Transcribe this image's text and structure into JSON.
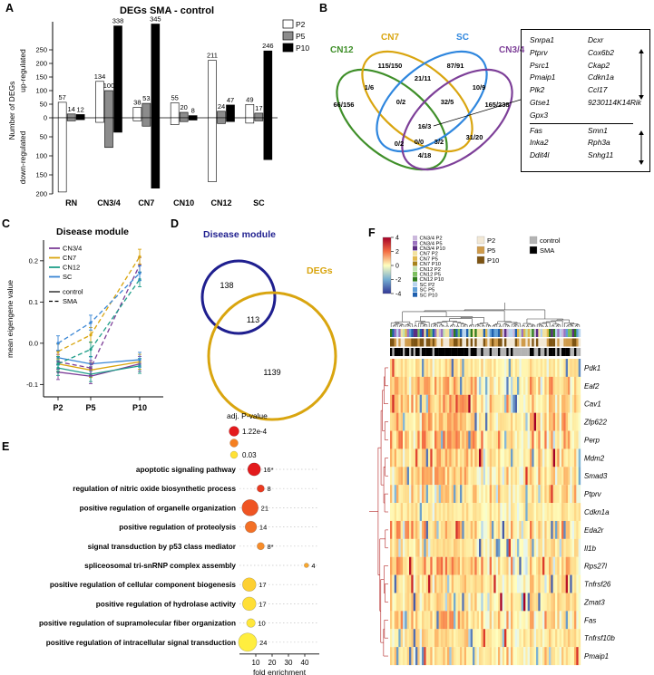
{
  "chart_data": [
    {
      "panel": "A",
      "type": "bar",
      "title": "DEGs SMA - control",
      "ylabel": "Number of DEGs",
      "ylabel_up": "up-regulated",
      "ylabel_down": "down-regulated",
      "legend": [
        {
          "label": "P2",
          "color": "#ffffff"
        },
        {
          "label": "P5",
          "color": "#8c8c8c"
        },
        {
          "label": "P10",
          "color": "#000000"
        }
      ],
      "categories": [
        "RN",
        "CN3/4",
        "CN7",
        "CN10",
        "CN12",
        "SC"
      ],
      "series_names": [
        "P2",
        "P5",
        "P10"
      ],
      "up_values": [
        [
          57,
          14,
          12
        ],
        [
          134,
          100,
          338
        ],
        [
          38,
          53,
          345
        ],
        [
          55,
          20,
          8
        ],
        [
          211,
          24,
          47
        ],
        [
          49,
          17,
          246
        ]
      ],
      "down_values": [
        [
          195,
          8,
          5
        ],
        [
          12,
          78,
          38
        ],
        [
          8,
          22,
          185
        ],
        [
          18,
          10,
          6
        ],
        [
          168,
          15,
          10
        ],
        [
          14,
          8,
          110
        ]
      ],
      "up_ticks": [
        0,
        50,
        100,
        150,
        200,
        250
      ],
      "down_ticks": [
        50,
        100,
        150,
        200
      ]
    },
    {
      "panel": "B",
      "type": "venn4",
      "sets": [
        {
          "name": "CN12",
          "color": "#3f8f29"
        },
        {
          "name": "CN7",
          "color": "#d9a50f"
        },
        {
          "name": "SC",
          "color": "#2e86de"
        },
        {
          "name": "CN3/4",
          "color": "#7d3f98"
        }
      ],
      "counts_reading_order": [
        "115/150",
        "87/91",
        "1/6",
        "21/11",
        "10/9",
        "66/156",
        "0/2",
        "32/5",
        "165/238",
        "16/3",
        "0/2",
        "0/0",
        "3/2",
        "31/20",
        "4/18"
      ],
      "gene_box": {
        "up_rows": [
          [
            "Snrpa1",
            "Dcxr"
          ],
          [
            "Ptprv",
            "Cox6b2"
          ],
          [
            "Psrc1",
            "Ckap2"
          ],
          [
            "Pmaip1",
            "Cdkn1a"
          ],
          [
            "Plk2",
            "Ccl17"
          ],
          [
            "Gtse1",
            "9230114K14Rik"
          ],
          [
            "Gpx3",
            ""
          ]
        ],
        "down_rows": [
          [
            "Fas",
            "Smn1"
          ],
          [
            "Inka2",
            "Rph3a"
          ],
          [
            "Ddit4l",
            "Snhg11"
          ]
        ]
      }
    },
    {
      "panel": "C",
      "type": "line",
      "title": "Disease module",
      "ylabel": "mean eigengene value",
      "x": [
        "P2",
        "P5",
        "P10"
      ],
      "yticks": [
        -0.1,
        0.0,
        0.1,
        0.2
      ],
      "groups": [
        {
          "name": "CN3/4",
          "color": "#7d3f98"
        },
        {
          "name": "CN7",
          "color": "#d9a50f"
        },
        {
          "name": "CN12",
          "color": "#1f9e89"
        },
        {
          "name": "SC",
          "color": "#3a86d4"
        }
      ],
      "line_styles": [
        {
          "label": "control",
          "dash": "solid"
        },
        {
          "label": "SMA",
          "dash": "dashed"
        }
      ],
      "error": 0.018,
      "series": [
        {
          "group": "CN3/4",
          "condition": "control",
          "values": [
            -0.07,
            -0.08,
            -0.05
          ]
        },
        {
          "group": "CN7",
          "condition": "control",
          "values": [
            -0.05,
            -0.065,
            -0.045
          ]
        },
        {
          "group": "CN12",
          "condition": "control",
          "values": [
            -0.06,
            -0.075,
            -0.055
          ]
        },
        {
          "group": "SC",
          "condition": "control",
          "values": [
            -0.035,
            -0.05,
            -0.04
          ]
        },
        {
          "group": "CN3/4",
          "condition": "SMA",
          "values": [
            -0.045,
            -0.06,
            0.19
          ]
        },
        {
          "group": "CN7",
          "condition": "SMA",
          "values": [
            -0.02,
            0.02,
            0.21
          ]
        },
        {
          "group": "CN12",
          "condition": "SMA",
          "values": [
            -0.05,
            -0.015,
            0.155
          ]
        },
        {
          "group": "SC",
          "condition": "SMA",
          "values": [
            0.0,
            0.05,
            0.17
          ]
        }
      ]
    },
    {
      "panel": "D",
      "type": "venn2",
      "circles": [
        {
          "name": "Disease module",
          "color": "#1f1f8f",
          "only": "138"
        },
        {
          "name": "DEGs",
          "color": "#d9a50f",
          "only": "1139"
        }
      ],
      "overlap": "113"
    },
    {
      "panel": "E",
      "type": "dotplot",
      "legend_title": "adj. P-value",
      "legend_values": [
        "1.22e-4",
        "0.03"
      ],
      "xlabel": "fold enrichment",
      "xticks": [
        10,
        20,
        30,
        40
      ],
      "terms": [
        {
          "name": "apoptotic signaling pathway",
          "count": "16*",
          "n": 16,
          "fold": 9,
          "color": "#e31a1c"
        },
        {
          "name": "regulation of nitric oxide biosynthetic process",
          "count": "8",
          "n": 8,
          "fold": 13,
          "color": "#ea3a20"
        },
        {
          "name": "positive regulation of organelle organization",
          "count": "21",
          "n": 21,
          "fold": 6.5,
          "color": "#ef5423"
        },
        {
          "name": "positive regulation of proteolysis",
          "count": "14",
          "n": 14,
          "fold": 7,
          "color": "#f37026"
        },
        {
          "name": "signal transduction by p53 class mediator",
          "count": "8*",
          "n": 8,
          "fold": 13,
          "color": "#f68c2a"
        },
        {
          "name": "spliceosomal tri-snRNP complex assembly",
          "count": "4",
          "n": 4,
          "fold": 41,
          "color": "#f9a72e"
        },
        {
          "name": "positive regulation of cellular component biogenesis",
          "count": "17",
          "n": 17,
          "fold": 6,
          "color": "#fdd032"
        },
        {
          "name": "positive regulation of hydrolase activity",
          "count": "17",
          "n": 17,
          "fold": 6,
          "color": "#ffdf36"
        },
        {
          "name": "positive regulation of supramolecular fiber organization",
          "count": "10",
          "n": 10,
          "fold": 7,
          "color": "#ffe73c"
        },
        {
          "name": "positive regulation of intracellular signal transduction",
          "count": "24",
          "n": 24,
          "fold": 5,
          "color": "#ffee3f"
        }
      ]
    },
    {
      "panel": "F",
      "type": "heatmap",
      "colorbar_ticks": [
        4,
        2,
        0,
        -2,
        -4
      ],
      "colorbar_colors": [
        "#a50026",
        "#f46d43",
        "#ffffbf",
        "#74add1",
        "#313695"
      ],
      "group_legend": [
        {
          "label": "CN3/4 P2",
          "color": "#cbb8dc"
        },
        {
          "label": "CN3/4 P5",
          "color": "#9b72bf"
        },
        {
          "label": "CN3/4 P10",
          "color": "#5c2d83"
        },
        {
          "label": "CN7 P2",
          "color": "#f2e2a0"
        },
        {
          "label": "CN7 P5",
          "color": "#e0b94e"
        },
        {
          "label": "CN7 P10",
          "color": "#a8831c"
        },
        {
          "label": "CN12 P2",
          "color": "#c4e3b2"
        },
        {
          "label": "CN12 P5",
          "color": "#7cbf5e"
        },
        {
          "label": "CN12 P10",
          "color": "#2f7d1d"
        },
        {
          "label": "SC P2",
          "color": "#b8d4ee"
        },
        {
          "label": "SC P5",
          "color": "#5f9fd6"
        },
        {
          "label": "SC P10",
          "color": "#1f5fae"
        }
      ],
      "age_legend": [
        {
          "label": "P2",
          "color": "#f2e8d5"
        },
        {
          "label": "P5",
          "color": "#cf9b4a"
        },
        {
          "label": "P10",
          "color": "#7d5413"
        }
      ],
      "condition_legend": [
        {
          "label": "control",
          "color": "#b3b3b3"
        },
        {
          "label": "SMA",
          "color": "#000000"
        }
      ],
      "genes": [
        "Pdk1",
        "Eaf2",
        "Cav1",
        "Zfp622",
        "Perp",
        "Mdm2",
        "Smad3",
        "Ptprv",
        "Cdkn1a",
        "Eda2r",
        "Il1b",
        "Rps27l",
        "Tnfrsf26",
        "Zmat3",
        "Fas",
        "Tnfrsf10b",
        "Pmaip1"
      ],
      "n_columns": 90
    }
  ]
}
